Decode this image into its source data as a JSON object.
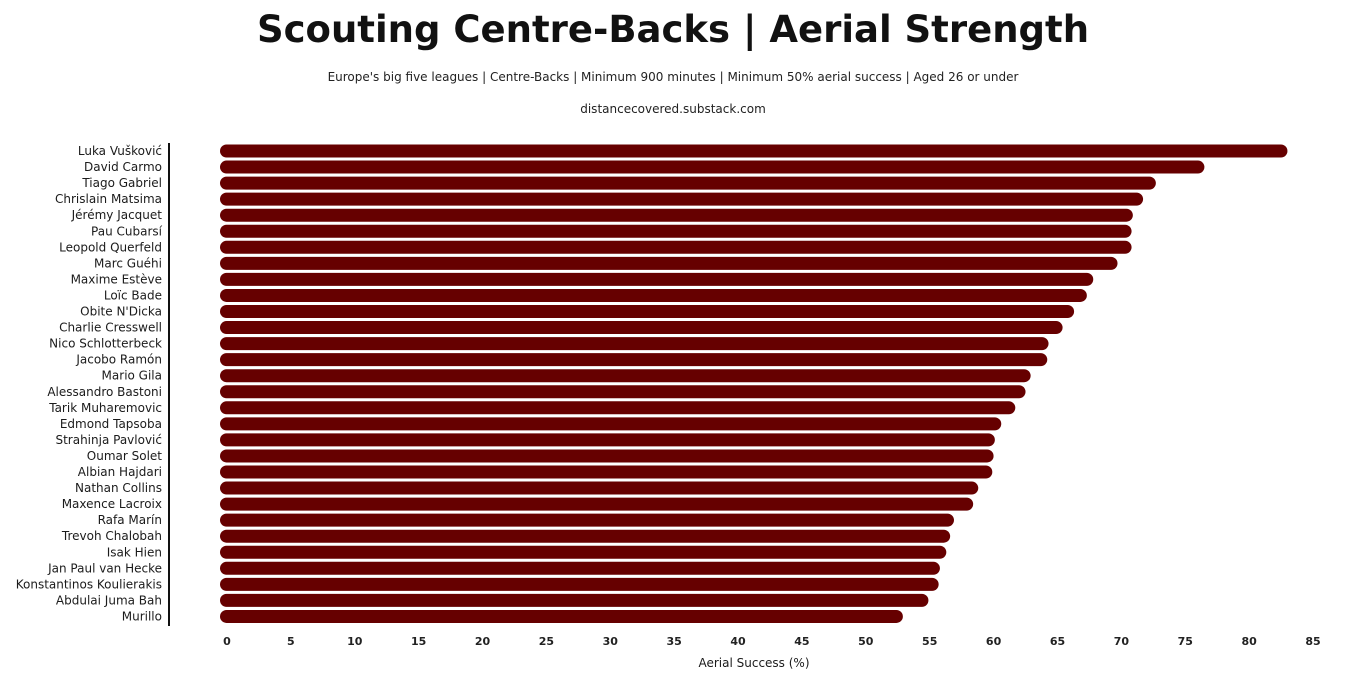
{
  "chart_data": {
    "type": "bar",
    "orientation": "horizontal",
    "title": "Scouting Centre-Backs | Aerial Strength",
    "subtitle": "Europe's big five leagues | Centre-Backs | Minimum 900 minutes | Minimum 50% aerial success | Aged 26 or under",
    "source": "distancecovered.substack.com",
    "xlabel": "Aerial Success (%)",
    "ylabel": "",
    "xlim": [
      0,
      85
    ],
    "xticks": [
      0,
      5,
      10,
      15,
      20,
      25,
      30,
      35,
      40,
      45,
      50,
      55,
      60,
      65,
      70,
      75,
      80,
      85
    ],
    "grid": false,
    "bar_color": "#660000",
    "categories": [
      "Luka Vušković",
      "David Carmo",
      "Tiago Gabriel",
      "Chrislain Matsima",
      "Jérémy Jacquet",
      "Pau Cubarsí",
      "Leopold Querfeld",
      "Marc Guéhi",
      "Maxime Estève",
      "Loïc Bade",
      "Obite N'Dicka",
      "Charlie Cresswell",
      "Nico Schlotterbeck",
      "Jacobo Ramón",
      "Mario Gila",
      "Alessandro Bastoni",
      "Tarik Muharemovic",
      "Edmond Tapsoba",
      "Strahinja Pavlović",
      "Oumar Solet",
      "Albian Hajdari",
      "Nathan Collins",
      "Maxence Lacroix",
      "Rafa Marín",
      "Trevoh Chalobah",
      "Isak Hien",
      "Jan Paul van Hecke",
      "Konstantinos Koulierakis",
      "Abdulai Juma Bah",
      "Murillo"
    ],
    "values": [
      83.0,
      76.5,
      72.7,
      71.7,
      70.9,
      70.8,
      70.8,
      69.7,
      67.8,
      67.3,
      66.3,
      65.4,
      64.3,
      64.2,
      62.9,
      62.5,
      61.7,
      60.6,
      60.1,
      60.0,
      59.9,
      58.8,
      58.4,
      56.9,
      56.6,
      56.3,
      55.8,
      55.7,
      54.9,
      52.9
    ]
  }
}
